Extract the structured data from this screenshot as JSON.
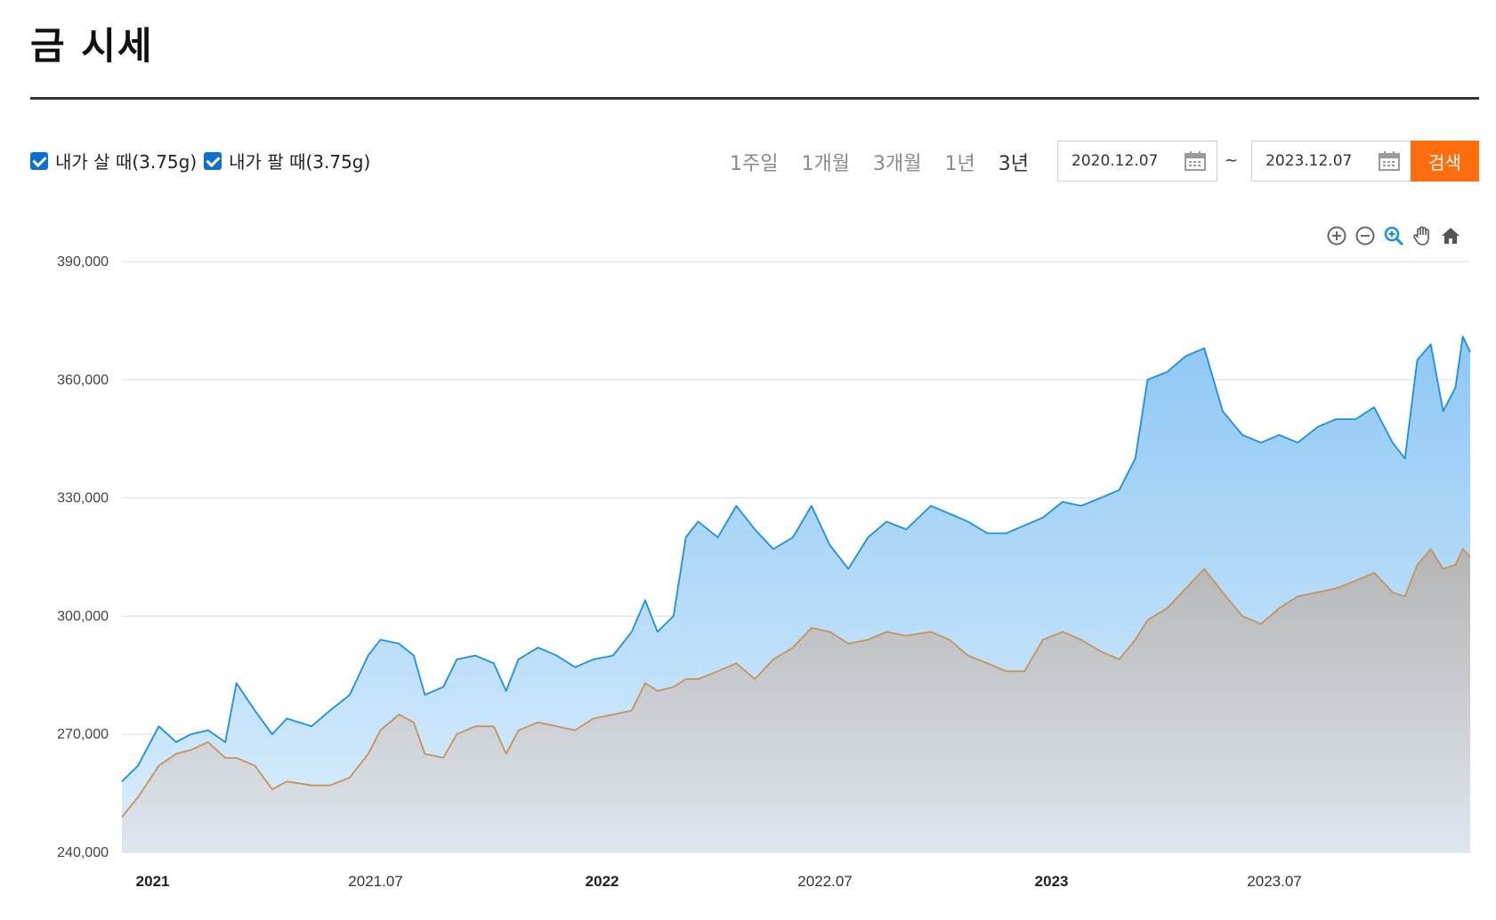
{
  "header": {
    "title": "금 시세"
  },
  "legend": {
    "buy": {
      "label": "내가 살 때(3.75g)",
      "checked": true
    },
    "sell": {
      "label": "내가 팔 때(3.75g)",
      "checked": true
    }
  },
  "periods": [
    {
      "label": "1주일",
      "active": false
    },
    {
      "label": "1개월",
      "active": false
    },
    {
      "label": "3개월",
      "active": false
    },
    {
      "label": "1년",
      "active": false
    },
    {
      "label": "3년",
      "active": true
    }
  ],
  "date_range": {
    "start": "2020.12.07",
    "separator": "~",
    "end": "2023.12.07"
  },
  "search_label": "검색",
  "tools": [
    "zoom-in-icon",
    "zoom-out-icon",
    "magnify-icon",
    "pan-hand-icon",
    "home-icon"
  ],
  "colors": {
    "buy_line": "#1a8fe3",
    "sell_line": "#c8935a",
    "accent": "#ff6d0f"
  },
  "chart_data": {
    "type": "area",
    "ylim": [
      240000,
      390000
    ],
    "yticks": [
      240000,
      270000,
      300000,
      330000,
      360000,
      390000
    ],
    "ytick_labels": [
      "240,000",
      "270,000",
      "300,000",
      "330,000",
      "360,000",
      "390,000"
    ],
    "xlim": [
      "2020-12-07",
      "2023-12-07"
    ],
    "xticks": [
      {
        "date": "2021-01-01",
        "label": "2021",
        "bold": true
      },
      {
        "date": "2021-07-01",
        "label": "2021.07",
        "bold": false
      },
      {
        "date": "2022-01-01",
        "label": "2022",
        "bold": true
      },
      {
        "date": "2022-07-01",
        "label": "2022.07",
        "bold": false
      },
      {
        "date": "2023-01-01",
        "label": "2023",
        "bold": true
      },
      {
        "date": "2023-07-01",
        "label": "2023.07",
        "bold": false
      }
    ],
    "series": [
      {
        "name": "내가 살 때(3.75g)",
        "points": [
          [
            "2020-12-07",
            258000
          ],
          [
            "2020-12-20",
            262000
          ],
          [
            "2021-01-06",
            272000
          ],
          [
            "2021-01-20",
            268000
          ],
          [
            "2021-02-01",
            270000
          ],
          [
            "2021-02-15",
            271000
          ],
          [
            "2021-03-01",
            268000
          ],
          [
            "2021-03-10",
            283000
          ],
          [
            "2021-03-25",
            276000
          ],
          [
            "2021-04-08",
            270000
          ],
          [
            "2021-04-20",
            274000
          ],
          [
            "2021-05-10",
            272000
          ],
          [
            "2021-05-25",
            276000
          ],
          [
            "2021-06-10",
            280000
          ],
          [
            "2021-06-25",
            290000
          ],
          [
            "2021-07-05",
            294000
          ],
          [
            "2021-07-20",
            293000
          ],
          [
            "2021-08-01",
            290000
          ],
          [
            "2021-08-10",
            280000
          ],
          [
            "2021-08-25",
            282000
          ],
          [
            "2021-09-05",
            289000
          ],
          [
            "2021-09-20",
            290000
          ],
          [
            "2021-10-05",
            288000
          ],
          [
            "2021-10-15",
            281000
          ],
          [
            "2021-10-25",
            289000
          ],
          [
            "2021-11-10",
            292000
          ],
          [
            "2021-11-25",
            290000
          ],
          [
            "2021-12-10",
            287000
          ],
          [
            "2021-12-25",
            289000
          ],
          [
            "2022-01-10",
            290000
          ],
          [
            "2022-01-25",
            296000
          ],
          [
            "2022-02-05",
            304000
          ],
          [
            "2022-02-15",
            296000
          ],
          [
            "2022-02-28",
            300000
          ],
          [
            "2022-03-10",
            320000
          ],
          [
            "2022-03-20",
            324000
          ],
          [
            "2022-04-05",
            320000
          ],
          [
            "2022-04-20",
            328000
          ],
          [
            "2022-05-05",
            322000
          ],
          [
            "2022-05-20",
            317000
          ],
          [
            "2022-06-05",
            320000
          ],
          [
            "2022-06-20",
            328000
          ],
          [
            "2022-07-05",
            318000
          ],
          [
            "2022-07-20",
            312000
          ],
          [
            "2022-08-05",
            320000
          ],
          [
            "2022-08-20",
            324000
          ],
          [
            "2022-09-05",
            322000
          ],
          [
            "2022-09-25",
            328000
          ],
          [
            "2022-10-10",
            326000
          ],
          [
            "2022-10-25",
            324000
          ],
          [
            "2022-11-10",
            321000
          ],
          [
            "2022-11-25",
            321000
          ],
          [
            "2022-12-10",
            323000
          ],
          [
            "2022-12-25",
            325000
          ],
          [
            "2023-01-10",
            329000
          ],
          [
            "2023-01-25",
            328000
          ],
          [
            "2023-02-10",
            330000
          ],
          [
            "2023-02-25",
            332000
          ],
          [
            "2023-03-10",
            340000
          ],
          [
            "2023-03-20",
            360000
          ],
          [
            "2023-04-05",
            362000
          ],
          [
            "2023-04-20",
            366000
          ],
          [
            "2023-05-05",
            368000
          ],
          [
            "2023-05-20",
            352000
          ],
          [
            "2023-06-05",
            346000
          ],
          [
            "2023-06-20",
            344000
          ],
          [
            "2023-07-05",
            346000
          ],
          [
            "2023-07-20",
            344000
          ],
          [
            "2023-08-05",
            348000
          ],
          [
            "2023-08-20",
            350000
          ],
          [
            "2023-09-05",
            350000
          ],
          [
            "2023-09-20",
            353000
          ],
          [
            "2023-10-05",
            344000
          ],
          [
            "2023-10-15",
            340000
          ],
          [
            "2023-10-25",
            365000
          ],
          [
            "2023-11-05",
            369000
          ],
          [
            "2023-11-15",
            352000
          ],
          [
            "2023-11-25",
            358000
          ],
          [
            "2023-12-01",
            371000
          ],
          [
            "2023-12-07",
            367000
          ]
        ]
      },
      {
        "name": "내가 팔 때(3.75g)",
        "points": [
          [
            "2020-12-07",
            249000
          ],
          [
            "2020-12-20",
            254000
          ],
          [
            "2021-01-06",
            262000
          ],
          [
            "2021-01-20",
            265000
          ],
          [
            "2021-02-01",
            266000
          ],
          [
            "2021-02-15",
            268000
          ],
          [
            "2021-03-01",
            264000
          ],
          [
            "2021-03-10",
            264000
          ],
          [
            "2021-03-25",
            262000
          ],
          [
            "2021-04-08",
            256000
          ],
          [
            "2021-04-20",
            258000
          ],
          [
            "2021-05-10",
            257000
          ],
          [
            "2021-05-25",
            257000
          ],
          [
            "2021-06-10",
            259000
          ],
          [
            "2021-06-25",
            265000
          ],
          [
            "2021-07-05",
            271000
          ],
          [
            "2021-07-20",
            275000
          ],
          [
            "2021-08-01",
            273000
          ],
          [
            "2021-08-10",
            265000
          ],
          [
            "2021-08-25",
            264000
          ],
          [
            "2021-09-05",
            270000
          ],
          [
            "2021-09-20",
            272000
          ],
          [
            "2021-10-05",
            272000
          ],
          [
            "2021-10-15",
            265000
          ],
          [
            "2021-10-25",
            271000
          ],
          [
            "2021-11-10",
            273000
          ],
          [
            "2021-11-25",
            272000
          ],
          [
            "2021-12-10",
            271000
          ],
          [
            "2021-12-25",
            274000
          ],
          [
            "2022-01-10",
            275000
          ],
          [
            "2022-01-25",
            276000
          ],
          [
            "2022-02-05",
            283000
          ],
          [
            "2022-02-15",
            281000
          ],
          [
            "2022-02-28",
            282000
          ],
          [
            "2022-03-10",
            284000
          ],
          [
            "2022-03-20",
            284000
          ],
          [
            "2022-04-05",
            286000
          ],
          [
            "2022-04-20",
            288000
          ],
          [
            "2022-05-05",
            284000
          ],
          [
            "2022-05-20",
            289000
          ],
          [
            "2022-06-05",
            292000
          ],
          [
            "2022-06-20",
            297000
          ],
          [
            "2022-07-05",
            296000
          ],
          [
            "2022-07-20",
            293000
          ],
          [
            "2022-08-05",
            294000
          ],
          [
            "2022-08-20",
            296000
          ],
          [
            "2022-09-05",
            295000
          ],
          [
            "2022-09-25",
            296000
          ],
          [
            "2022-10-10",
            294000
          ],
          [
            "2022-10-25",
            290000
          ],
          [
            "2022-11-10",
            288000
          ],
          [
            "2022-11-25",
            286000
          ],
          [
            "2022-12-10",
            286000
          ],
          [
            "2022-12-25",
            294000
          ],
          [
            "2023-01-10",
            296000
          ],
          [
            "2023-01-25",
            294000
          ],
          [
            "2023-02-10",
            291000
          ],
          [
            "2023-02-25",
            289000
          ],
          [
            "2023-03-10",
            294000
          ],
          [
            "2023-03-20",
            299000
          ],
          [
            "2023-04-05",
            302000
          ],
          [
            "2023-04-20",
            307000
          ],
          [
            "2023-05-05",
            312000
          ],
          [
            "2023-05-20",
            306000
          ],
          [
            "2023-06-05",
            300000
          ],
          [
            "2023-06-20",
            298000
          ],
          [
            "2023-07-05",
            302000
          ],
          [
            "2023-07-20",
            305000
          ],
          [
            "2023-08-05",
            306000
          ],
          [
            "2023-08-20",
            307000
          ],
          [
            "2023-09-05",
            309000
          ],
          [
            "2023-09-20",
            311000
          ],
          [
            "2023-10-05",
            306000
          ],
          [
            "2023-10-15",
            305000
          ],
          [
            "2023-10-25",
            313000
          ],
          [
            "2023-11-05",
            317000
          ],
          [
            "2023-11-15",
            312000
          ],
          [
            "2023-11-25",
            313000
          ],
          [
            "2023-12-01",
            317000
          ],
          [
            "2023-12-07",
            315000
          ]
        ]
      }
    ]
  }
}
